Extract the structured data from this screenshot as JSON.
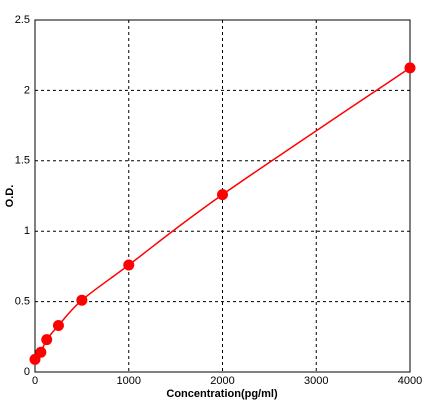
{
  "chart_data": {
    "type": "scatter",
    "x_label": "Concentration(pg/ml)",
    "y_label": "O.D.",
    "series": [
      {
        "x": [
          0,
          62.5,
          125,
          250,
          500,
          1000,
          2000,
          4000
        ],
        "values": [
          0.09,
          0.14,
          0.23,
          0.33,
          0.51,
          0.76,
          1.26,
          2.16
        ],
        "color": "#ff0000",
        "line": true
      }
    ],
    "xlim": [
      0,
      4000
    ],
    "xticks": [
      0,
      1000,
      2000,
      3000,
      4000
    ],
    "ylim": [
      0,
      2.5
    ],
    "yticks": [
      0,
      0.5,
      1,
      1.5,
      2,
      2.5
    ],
    "grid": true
  }
}
